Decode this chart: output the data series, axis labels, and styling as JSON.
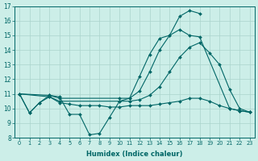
{
  "xlabel": "Humidex (Indice chaleur)",
  "background_color": "#cceee8",
  "grid_color": "#aad4cc",
  "line_color": "#006666",
  "xlim": [
    -0.5,
    23.5
  ],
  "ylim": [
    8,
    17
  ],
  "yticks": [
    8,
    9,
    10,
    11,
    12,
    13,
    14,
    15,
    16,
    17
  ],
  "xticks": [
    0,
    1,
    2,
    3,
    4,
    5,
    6,
    7,
    8,
    9,
    10,
    11,
    12,
    13,
    14,
    15,
    16,
    17,
    18,
    19,
    20,
    21,
    22,
    23
  ],
  "series": [
    {
      "x": [
        0,
        1,
        2,
        3,
        4,
        5,
        6,
        7,
        8,
        9,
        10,
        11,
        12,
        13,
        14,
        15,
        16,
        17,
        18,
        19,
        20,
        21,
        22,
        23
      ],
      "y": [
        11.0,
        9.7,
        10.4,
        10.9,
        10.8,
        9.6,
        9.6,
        8.2,
        8.3,
        9.4,
        10.5,
        10.7,
        12.2,
        13.7,
        14.8,
        15.0,
        16.3,
        16.7,
        16.5,
        null,
        null,
        null,
        null,
        null
      ]
    },
    {
      "x": [
        0,
        3,
        4,
        10,
        11,
        12,
        13,
        14,
        15,
        16,
        17,
        18,
        21,
        22,
        23
      ],
      "y": [
        11.0,
        10.9,
        10.7,
        10.7,
        10.7,
        11.2,
        12.5,
        14.0,
        15.0,
        15.4,
        15.0,
        14.9,
        10.0,
        9.85,
        9.75
      ]
    },
    {
      "x": [
        0,
        3,
        4,
        10,
        11,
        12,
        13,
        14,
        15,
        16,
        17,
        18,
        19,
        20,
        21,
        22,
        23
      ],
      "y": [
        11.0,
        10.8,
        10.5,
        10.5,
        10.5,
        10.6,
        10.9,
        11.5,
        12.5,
        13.5,
        14.2,
        14.5,
        13.8,
        13.0,
        11.3,
        10.0,
        9.75
      ]
    },
    {
      "x": [
        0,
        1,
        2,
        3,
        4,
        5,
        6,
        7,
        8,
        9,
        10,
        11,
        12,
        13,
        14,
        15,
        16,
        17,
        18,
        19,
        20,
        21,
        22,
        23
      ],
      "y": [
        11.0,
        9.7,
        10.4,
        10.8,
        10.4,
        10.3,
        10.2,
        10.2,
        10.2,
        10.1,
        10.1,
        10.2,
        10.2,
        10.2,
        10.3,
        10.4,
        10.5,
        10.7,
        10.7,
        10.5,
        10.2,
        10.0,
        9.85,
        9.75
      ]
    }
  ]
}
